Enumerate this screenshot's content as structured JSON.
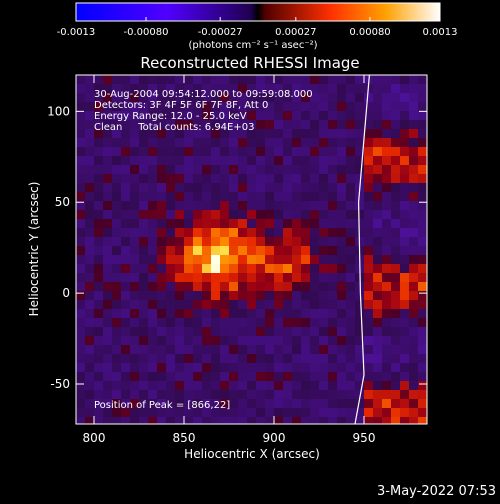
{
  "chart_data": {
    "type": "heatmap",
    "title": "Reconstructed RHESSI Image",
    "xlabel": "Heliocentric X (arcsec)",
    "ylabel": "Heliocentric Y (arcsec)",
    "xlim": [
      790,
      985
    ],
    "ylim": [
      -72,
      120
    ],
    "x_ticks": [
      "800",
      "850",
      "900",
      "950"
    ],
    "y_ticks": [
      "100",
      "50",
      "0",
      "-50"
    ],
    "x_tick_values": [
      800,
      850,
      900,
      950
    ],
    "y_tick_values": [
      100,
      50,
      0,
      -50
    ],
    "colorbar": {
      "ticks": [
        "-0.0013",
        "-0.00080",
        "-0.00027",
        "0.00027",
        "0.00080",
        "0.0013"
      ],
      "tick_values": [
        -0.0013,
        -0.0008,
        -0.00027,
        0.00027,
        0.0008,
        0.0013
      ],
      "range": [
        -0.0013,
        0.0013
      ],
      "units": "(photons cm⁻² s⁻¹ asec⁻²)"
    },
    "info_lines": [
      "30-Aug-2004 09:54:12.000 to 09:59:08.000",
      "Detectors: 3F 4F 5F 6F 7F 8F, Att 0",
      "Energy Range: 12.0 - 25.0 keV",
      "Clean     Total counts: 6.94E+03"
    ],
    "peak_label": "Position of Peak = [866,22]",
    "peak_position": [
      866,
      22
    ],
    "limb_curve": [
      [
        953,
        120
      ],
      [
        947,
        50
      ],
      [
        948,
        0
      ],
      [
        950,
        -45
      ],
      [
        945,
        -72
      ]
    ]
  },
  "footer": {
    "timestamp": "3-May-2022 07:53"
  }
}
